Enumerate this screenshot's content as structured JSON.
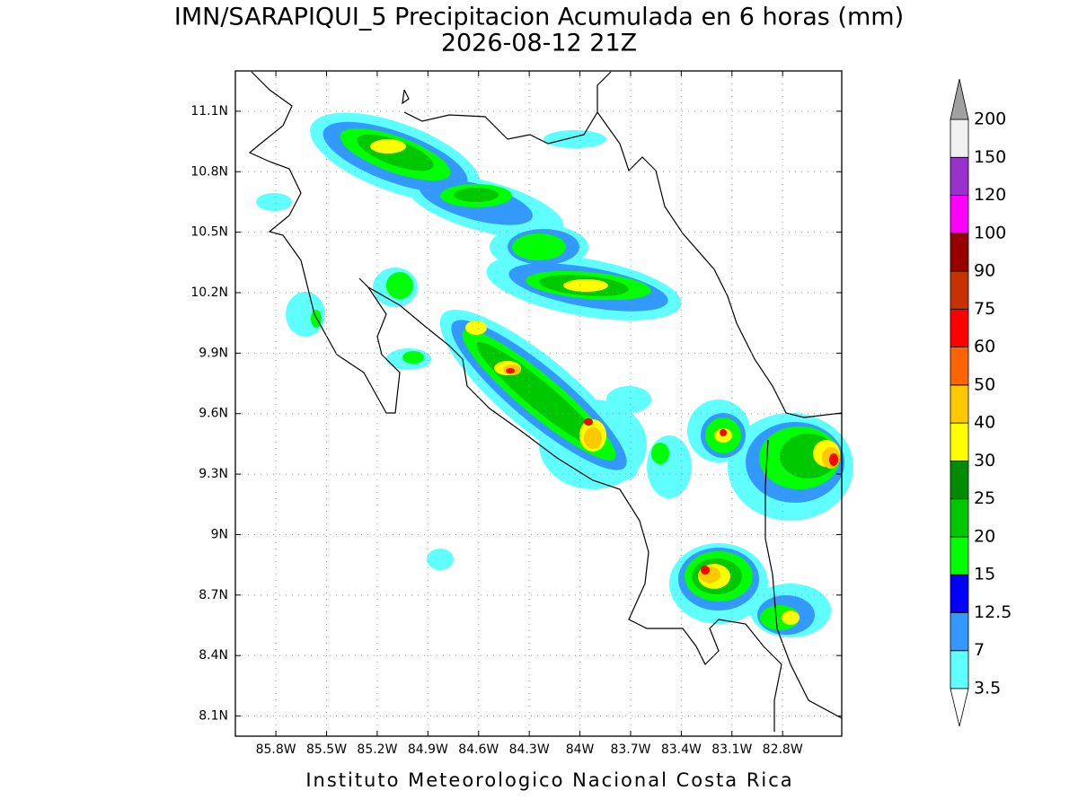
{
  "header": {
    "title": "IMN/SARAPIQUI_5 Precipitacion Acumulada en 6 horas (mm)",
    "subtitle": "2026-08-12 21Z"
  },
  "map": {
    "lat_range": [
      8.0,
      11.3
    ],
    "lon_range": [
      -86.04,
      -82.45
    ],
    "lat_ticks": [
      {
        "value": 11.1,
        "label": "11.1N"
      },
      {
        "value": 10.8,
        "label": "10.8N"
      },
      {
        "value": 10.5,
        "label": "10.5N"
      },
      {
        "value": 10.2,
        "label": "10.2N"
      },
      {
        "value": 9.9,
        "label": "9.9N"
      },
      {
        "value": 9.6,
        "label": "9.6N"
      },
      {
        "value": 9.3,
        "label": "9.3N"
      },
      {
        "value": 9,
        "label": "9N"
      },
      {
        "value": 8.7,
        "label": "8.7N"
      },
      {
        "value": 8.4,
        "label": "8.4N"
      },
      {
        "value": 8.1,
        "label": "8.1N"
      }
    ],
    "lon_ticks": [
      {
        "value": -85.8,
        "label": "85.8W"
      },
      {
        "value": -85.5,
        "label": "85.5W"
      },
      {
        "value": -85.2,
        "label": "85.2W"
      },
      {
        "value": -84.9,
        "label": "84.9W"
      },
      {
        "value": -84.6,
        "label": "84.6W"
      },
      {
        "value": -84.3,
        "label": "84.3W"
      },
      {
        "value": -84,
        "label": "84W"
      },
      {
        "value": -83.7,
        "label": "83.7W"
      },
      {
        "value": -83.4,
        "label": "83.4W"
      },
      {
        "value": -83.1,
        "label": "83.1W"
      },
      {
        "value": -82.8,
        "label": "82.8W"
      }
    ],
    "grid": true
  },
  "colorbar": {
    "levels": [
      3.5,
      7,
      12.5,
      15,
      20,
      25,
      30,
      40,
      50,
      60,
      75,
      90,
      100,
      120,
      150,
      200
    ],
    "colors": [
      "#5fffff",
      "#3399ff",
      "#0000ff",
      "#00ff00",
      "#00c800",
      "#008c00",
      "#ffff00",
      "#ffc800",
      "#ff6400",
      "#ff0000",
      "#c83200",
      "#960000",
      "#ff00ff",
      "#9932cc",
      "#f0f0f0"
    ],
    "under_color": "#ffffff",
    "over_color": "#a0a0a0"
  },
  "footer": {
    "credit": "Instituto Meteorologico Nacional Costa Rica"
  }
}
